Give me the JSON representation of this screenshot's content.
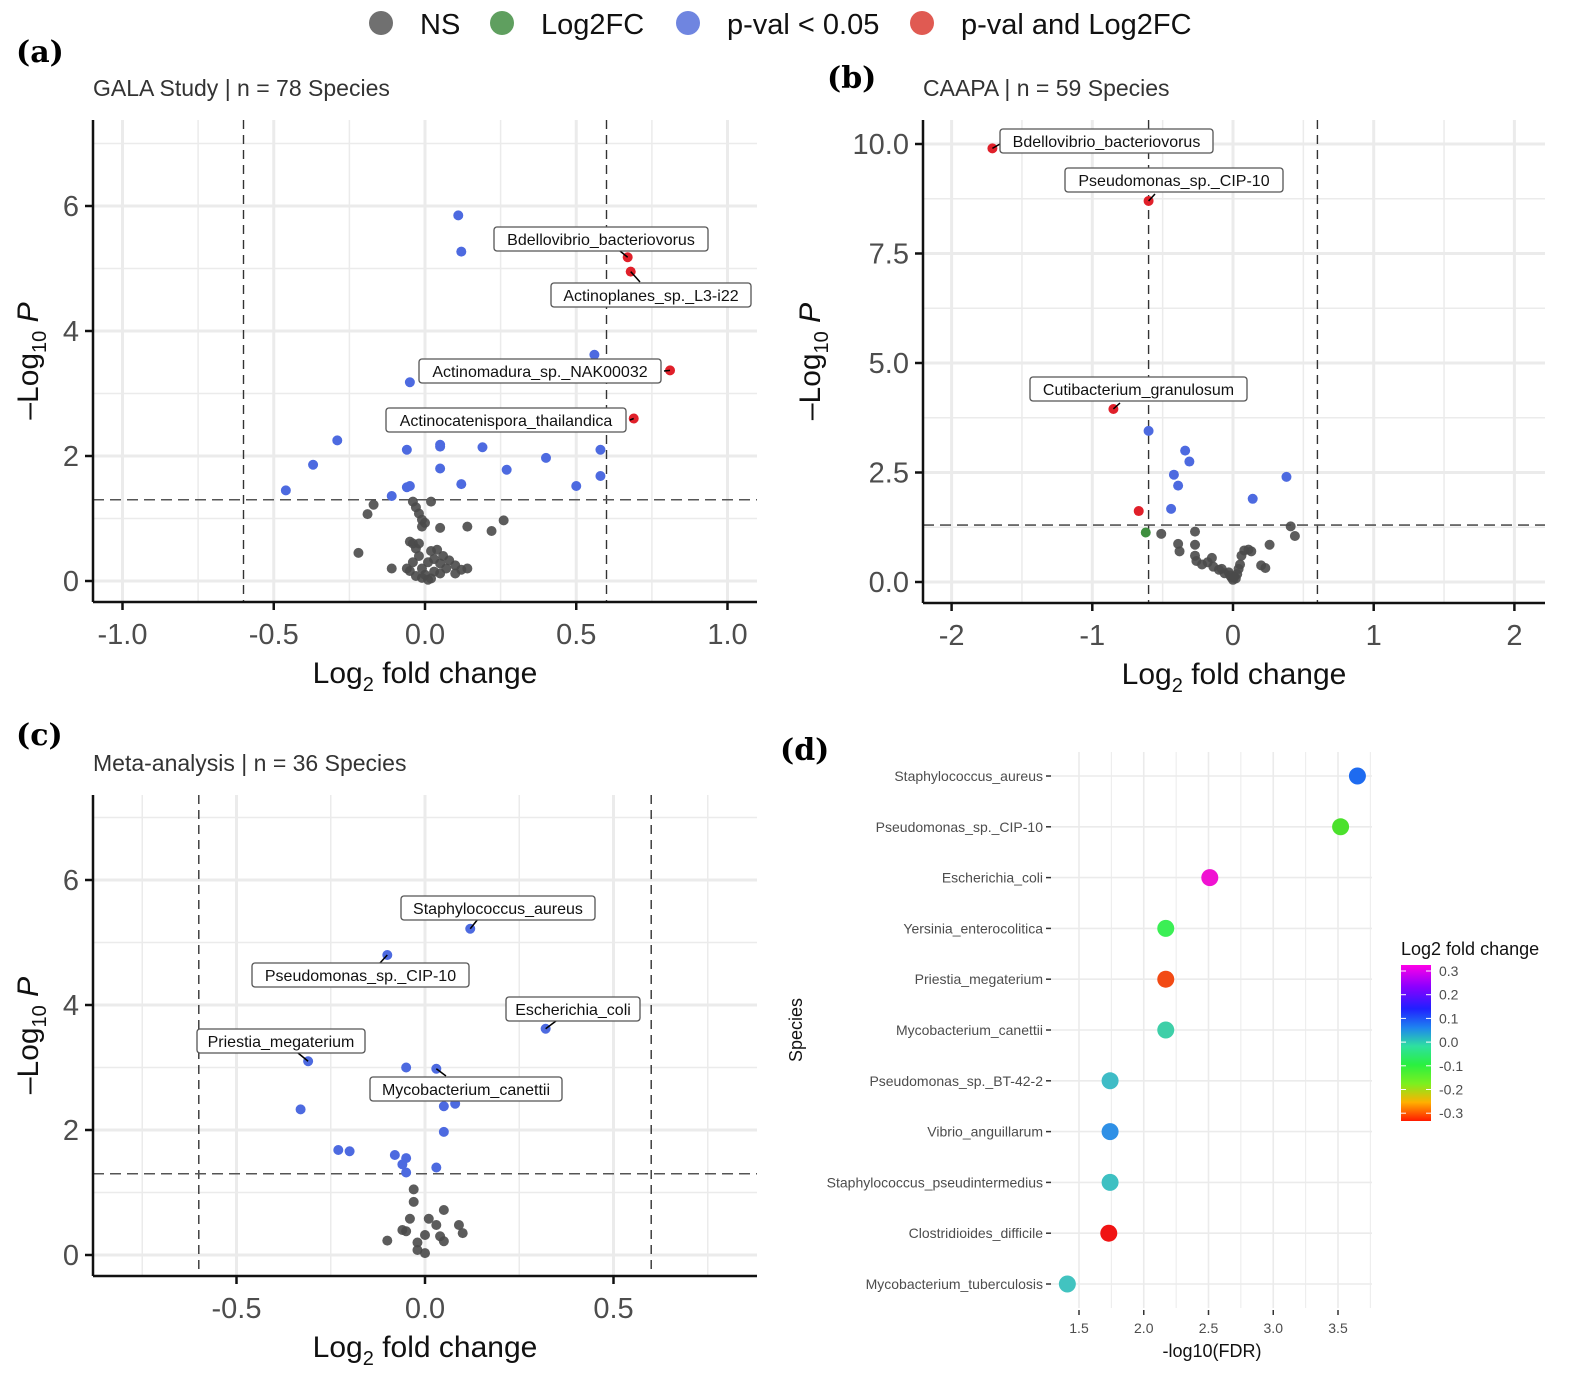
{
  "legend": {
    "items": [
      {
        "label": "NS",
        "color": "#707070"
      },
      {
        "label": "Log2FC",
        "color": "#5f9f5f"
      },
      {
        "label": "p-val < 0.05",
        "color": "#6f85e0"
      },
      {
        "label": "p-val and Log2FC",
        "color": "#e05a52"
      }
    ]
  },
  "chart_data": [
    {
      "panel": "(a)",
      "type": "scatter",
      "title": "GALA Study | n = 78 Species",
      "xlabel": "Log2 fold change",
      "ylabel": "-Log10 P",
      "xlim": [
        -1.1,
        1.1
      ],
      "ylim": [
        -0.3,
        7.4
      ],
      "xticks": [
        "-1.0",
        "-0.5",
        "0.0",
        "0.5",
        "1.0"
      ],
      "xtick_values": [
        -1.0,
        -0.5,
        0.0,
        0.5,
        1.0
      ],
      "yticks": [
        "0",
        "2",
        "4",
        "6"
      ],
      "ytick_values": [
        0,
        2,
        4,
        6
      ],
      "thresholds": {
        "x": [
          -0.6,
          0.6
        ],
        "y": 1.3
      },
      "grid": true,
      "points": [
        {
          "x": 0.11,
          "y": 5.85,
          "cat": "p"
        },
        {
          "x": 0.12,
          "y": 5.27,
          "cat": "p"
        },
        {
          "x": 0.67,
          "y": 5.18,
          "cat": "both",
          "label": "Bdellovibrio_bacteriovorus"
        },
        {
          "x": 0.68,
          "y": 4.95,
          "cat": "both",
          "label": "Actinoplanes_sp._L3-i22"
        },
        {
          "x": 0.56,
          "y": 3.62,
          "cat": "p"
        },
        {
          "x": 0.81,
          "y": 3.37,
          "cat": "both",
          "label": "Actinomadura_sp._NAK00032"
        },
        {
          "x": -0.05,
          "y": 3.18,
          "cat": "p"
        },
        {
          "x": 0.69,
          "y": 2.6,
          "cat": "both",
          "label": "Actinocatenispora_thailandica"
        },
        {
          "x": -0.29,
          "y": 2.25,
          "cat": "p"
        },
        {
          "x": -0.06,
          "y": 2.1,
          "cat": "p"
        },
        {
          "x": 0.05,
          "y": 2.15,
          "cat": "p"
        },
        {
          "x": 0.05,
          "y": 2.18,
          "cat": "p"
        },
        {
          "x": 0.19,
          "y": 2.14,
          "cat": "p"
        },
        {
          "x": 0.58,
          "y": 2.1,
          "cat": "p"
        },
        {
          "x": 0.4,
          "y": 1.97,
          "cat": "p"
        },
        {
          "x": -0.37,
          "y": 1.86,
          "cat": "p"
        },
        {
          "x": 0.05,
          "y": 1.8,
          "cat": "p"
        },
        {
          "x": 0.27,
          "y": 1.78,
          "cat": "p"
        },
        {
          "x": 0.58,
          "y": 1.68,
          "cat": "p"
        },
        {
          "x": 0.12,
          "y": 1.55,
          "cat": "p"
        },
        {
          "x": 0.5,
          "y": 1.52,
          "cat": "p"
        },
        {
          "x": -0.46,
          "y": 1.45,
          "cat": "p"
        },
        {
          "x": -0.06,
          "y": 1.5,
          "cat": "p"
        },
        {
          "x": -0.05,
          "y": 1.52,
          "cat": "p"
        },
        {
          "x": -0.11,
          "y": 1.36,
          "cat": "p"
        },
        {
          "x": -0.17,
          "y": 1.22,
          "cat": "ns"
        },
        {
          "x": -0.19,
          "y": 1.07,
          "cat": "ns"
        },
        {
          "x": -0.04,
          "y": 1.27,
          "cat": "ns"
        },
        {
          "x": -0.03,
          "y": 1.18,
          "cat": "ns"
        },
        {
          "x": -0.02,
          "y": 1.08,
          "cat": "ns"
        },
        {
          "x": -0.01,
          "y": 0.98,
          "cat": "ns"
        },
        {
          "x": 0.02,
          "y": 1.27,
          "cat": "ns"
        },
        {
          "x": 0.0,
          "y": 0.93,
          "cat": "ns"
        },
        {
          "x": -0.01,
          "y": 0.87,
          "cat": "ns"
        },
        {
          "x": 0.05,
          "y": 0.85,
          "cat": "ns"
        },
        {
          "x": 0.14,
          "y": 0.87,
          "cat": "ns"
        },
        {
          "x": 0.26,
          "y": 0.97,
          "cat": "ns"
        },
        {
          "x": 0.22,
          "y": 0.8,
          "cat": "ns"
        },
        {
          "x": -0.22,
          "y": 0.45,
          "cat": "ns"
        },
        {
          "x": -0.11,
          "y": 0.2,
          "cat": "ns"
        },
        {
          "x": -0.06,
          "y": 0.2,
          "cat": "ns"
        },
        {
          "x": -0.05,
          "y": 0.63,
          "cat": "ns"
        },
        {
          "x": -0.04,
          "y": 0.6,
          "cat": "ns"
        },
        {
          "x": -0.03,
          "y": 0.52,
          "cat": "ns"
        },
        {
          "x": -0.02,
          "y": 0.4,
          "cat": "ns"
        },
        {
          "x": -0.04,
          "y": 0.3,
          "cat": "ns"
        },
        {
          "x": -0.05,
          "y": 0.16,
          "cat": "ns"
        },
        {
          "x": -0.03,
          "y": 0.08,
          "cat": "ns"
        },
        {
          "x": -0.01,
          "y": 0.05,
          "cat": "ns"
        },
        {
          "x": 0.01,
          "y": 0.02,
          "cat": "ns"
        },
        {
          "x": 0.0,
          "y": 0.1,
          "cat": "ns"
        },
        {
          "x": -0.01,
          "y": 0.2,
          "cat": "ns"
        },
        {
          "x": 0.01,
          "y": 0.3,
          "cat": "ns"
        },
        {
          "x": 0.02,
          "y": 0.48,
          "cat": "ns"
        },
        {
          "x": 0.03,
          "y": 0.35,
          "cat": "ns"
        },
        {
          "x": 0.04,
          "y": 0.5,
          "cat": "ns"
        },
        {
          "x": 0.05,
          "y": 0.28,
          "cat": "ns"
        },
        {
          "x": 0.06,
          "y": 0.4,
          "cat": "ns"
        },
        {
          "x": 0.07,
          "y": 0.2,
          "cat": "ns"
        },
        {
          "x": 0.08,
          "y": 0.33,
          "cat": "ns"
        },
        {
          "x": 0.1,
          "y": 0.25,
          "cat": "ns"
        },
        {
          "x": 0.12,
          "y": 0.18,
          "cat": "ns"
        },
        {
          "x": 0.14,
          "y": 0.2,
          "cat": "ns"
        },
        {
          "x": 0.03,
          "y": 0.15,
          "cat": "ns"
        },
        {
          "x": 0.02,
          "y": 0.04,
          "cat": "ns"
        },
        {
          "x": 0.05,
          "y": 0.12,
          "cat": "ns"
        },
        {
          "x": -0.02,
          "y": 0.6,
          "cat": "ns"
        },
        {
          "x": 0.1,
          "y": 0.12,
          "cat": "ns"
        }
      ]
    },
    {
      "panel": "(b)",
      "type": "scatter",
      "title": "CAAPA | n = 59 Species",
      "xlabel": "Log2 fold change",
      "ylabel": "-Log10 P",
      "xlim": [
        -2.2,
        2.2
      ],
      "ylim": [
        -0.5,
        10.5
      ],
      "xticks": [
        "-2",
        "-1",
        "0",
        "1",
        "2"
      ],
      "xtick_values": [
        -2,
        -1,
        0,
        1,
        2
      ],
      "yticks": [
        "0.0",
        "2.5",
        "5.0",
        "7.5",
        "10.0"
      ],
      "ytick_values": [
        0,
        2.5,
        5,
        7.5,
        10
      ],
      "thresholds": {
        "x": [
          -0.6,
          0.6
        ],
        "y": 1.3
      },
      "grid": true,
      "points": [
        {
          "x": -1.71,
          "y": 9.9,
          "cat": "both",
          "label": "Bdellovibrio_bacteriovorus"
        },
        {
          "x": -0.6,
          "y": 8.7,
          "cat": "both",
          "label": "Pseudomonas_sp._CIP-10"
        },
        {
          "x": -0.85,
          "y": 3.95,
          "cat": "both",
          "label": "Cutibacterium_granulosum"
        },
        {
          "x": -0.6,
          "y": 3.45,
          "cat": "p"
        },
        {
          "x": -0.34,
          "y": 3.0,
          "cat": "p"
        },
        {
          "x": -0.31,
          "y": 2.75,
          "cat": "p"
        },
        {
          "x": -0.42,
          "y": 2.45,
          "cat": "p"
        },
        {
          "x": -0.39,
          "y": 2.2,
          "cat": "p"
        },
        {
          "x": 0.38,
          "y": 2.4,
          "cat": "p"
        },
        {
          "x": 0.14,
          "y": 1.9,
          "cat": "p"
        },
        {
          "x": -0.44,
          "y": 1.67,
          "cat": "p"
        },
        {
          "x": -0.67,
          "y": 1.62,
          "cat": "both"
        },
        {
          "x": -0.62,
          "y": 1.13,
          "cat": "fc"
        },
        {
          "x": -0.51,
          "y": 1.1,
          "cat": "ns"
        },
        {
          "x": -0.27,
          "y": 1.15,
          "cat": "ns"
        },
        {
          "x": -0.39,
          "y": 0.87,
          "cat": "ns"
        },
        {
          "x": -0.38,
          "y": 0.7,
          "cat": "ns"
        },
        {
          "x": -0.27,
          "y": 0.85,
          "cat": "ns"
        },
        {
          "x": -0.27,
          "y": 0.6,
          "cat": "ns"
        },
        {
          "x": -0.26,
          "y": 0.48,
          "cat": "ns"
        },
        {
          "x": -0.22,
          "y": 0.4,
          "cat": "ns"
        },
        {
          "x": -0.18,
          "y": 0.45,
          "cat": "ns"
        },
        {
          "x": -0.15,
          "y": 0.55,
          "cat": "ns"
        },
        {
          "x": -0.14,
          "y": 0.35,
          "cat": "ns"
        },
        {
          "x": -0.1,
          "y": 0.28,
          "cat": "ns"
        },
        {
          "x": -0.06,
          "y": 0.2,
          "cat": "ns"
        },
        {
          "x": -0.03,
          "y": 0.22,
          "cat": "ns"
        },
        {
          "x": -0.01,
          "y": 0.1,
          "cat": "ns"
        },
        {
          "x": 0.0,
          "y": 0.05,
          "cat": "ns"
        },
        {
          "x": 0.01,
          "y": 0.12,
          "cat": "ns"
        },
        {
          "x": 0.03,
          "y": 0.18,
          "cat": "ns"
        },
        {
          "x": 0.04,
          "y": 0.3,
          "cat": "ns"
        },
        {
          "x": 0.05,
          "y": 0.4,
          "cat": "ns"
        },
        {
          "x": 0.06,
          "y": 0.6,
          "cat": "ns"
        },
        {
          "x": 0.08,
          "y": 0.72,
          "cat": "ns"
        },
        {
          "x": 0.11,
          "y": 0.74,
          "cat": "ns"
        },
        {
          "x": 0.13,
          "y": 0.7,
          "cat": "ns"
        },
        {
          "x": 0.2,
          "y": 0.38,
          "cat": "ns"
        },
        {
          "x": 0.23,
          "y": 0.32,
          "cat": "ns"
        },
        {
          "x": 0.26,
          "y": 0.85,
          "cat": "ns"
        },
        {
          "x": 0.41,
          "y": 1.27,
          "cat": "ns"
        },
        {
          "x": 0.44,
          "y": 1.05,
          "cat": "ns"
        },
        {
          "x": -0.02,
          "y": 0.15,
          "cat": "ns"
        },
        {
          "x": 0.02,
          "y": 0.08,
          "cat": "ns"
        },
        {
          "x": -0.08,
          "y": 0.3,
          "cat": "ns"
        }
      ]
    },
    {
      "panel": "(c)",
      "type": "scatter",
      "title": "Meta-analysis | n = 36 Species",
      "xlabel": "Log2 fold change",
      "ylabel": "-Log10 P",
      "xlim": [
        -0.88,
        0.88
      ],
      "ylim": [
        -0.3,
        7.4
      ],
      "xticks": [
        "-0.5",
        "0.0",
        "0.5"
      ],
      "xtick_values": [
        -0.5,
        0.0,
        0.5
      ],
      "yticks": [
        "0",
        "2",
        "4",
        "6"
      ],
      "ytick_values": [
        0,
        2,
        4,
        6
      ],
      "thresholds": {
        "x": [
          -0.6,
          0.6
        ],
        "y": 1.3
      },
      "grid": true,
      "points": [
        {
          "x": 0.12,
          "y": 5.22,
          "cat": "p",
          "label": "Staphylococcus_aureus"
        },
        {
          "x": -0.1,
          "y": 4.8,
          "cat": "p",
          "label": "Pseudomonas_sp._CIP-10"
        },
        {
          "x": 0.32,
          "y": 3.62,
          "cat": "p",
          "label": "Escherichia_coli"
        },
        {
          "x": -0.31,
          "y": 3.1,
          "cat": "p",
          "label": "Priestia_megaterium"
        },
        {
          "x": -0.05,
          "y": 3.0,
          "cat": "p"
        },
        {
          "x": 0.03,
          "y": 2.98,
          "cat": "p",
          "label": "Mycobacterium_canettii"
        },
        {
          "x": 0.05,
          "y": 2.38,
          "cat": "p"
        },
        {
          "x": 0.08,
          "y": 2.42,
          "cat": "p"
        },
        {
          "x": -0.33,
          "y": 2.33,
          "cat": "p"
        },
        {
          "x": 0.05,
          "y": 1.97,
          "cat": "p"
        },
        {
          "x": -0.23,
          "y": 1.68,
          "cat": "p"
        },
        {
          "x": -0.2,
          "y": 1.66,
          "cat": "p"
        },
        {
          "x": -0.08,
          "y": 1.6,
          "cat": "p"
        },
        {
          "x": -0.05,
          "y": 1.55,
          "cat": "p"
        },
        {
          "x": -0.06,
          "y": 1.45,
          "cat": "p"
        },
        {
          "x": 0.03,
          "y": 1.4,
          "cat": "p"
        },
        {
          "x": -0.05,
          "y": 1.32,
          "cat": "p"
        },
        {
          "x": -0.03,
          "y": 1.05,
          "cat": "ns"
        },
        {
          "x": -0.03,
          "y": 0.85,
          "cat": "ns"
        },
        {
          "x": 0.05,
          "y": 0.72,
          "cat": "ns"
        },
        {
          "x": -0.04,
          "y": 0.58,
          "cat": "ns"
        },
        {
          "x": 0.01,
          "y": 0.58,
          "cat": "ns"
        },
        {
          "x": 0.03,
          "y": 0.48,
          "cat": "ns"
        },
        {
          "x": 0.09,
          "y": 0.48,
          "cat": "ns"
        },
        {
          "x": 0.1,
          "y": 0.35,
          "cat": "ns"
        },
        {
          "x": -0.06,
          "y": 0.4,
          "cat": "ns"
        },
        {
          "x": -0.05,
          "y": 0.38,
          "cat": "ns"
        },
        {
          "x": 0.0,
          "y": 0.32,
          "cat": "ns"
        },
        {
          "x": 0.04,
          "y": 0.3,
          "cat": "ns"
        },
        {
          "x": 0.05,
          "y": 0.22,
          "cat": "ns"
        },
        {
          "x": -0.1,
          "y": 0.23,
          "cat": "ns"
        },
        {
          "x": -0.02,
          "y": 0.2,
          "cat": "ns"
        },
        {
          "x": -0.02,
          "y": 0.08,
          "cat": "ns"
        },
        {
          "x": 0.0,
          "y": 0.03,
          "cat": "ns"
        }
      ]
    },
    {
      "panel": "(d)",
      "type": "scatter",
      "title": "",
      "xlabel": "-log10(FDR)",
      "ylabel": "Species",
      "xlim": [
        1.35,
        3.75
      ],
      "xticks": [
        "1.5",
        "2.0",
        "2.5",
        "3.0",
        "3.5"
      ],
      "xtick_values": [
        1.5,
        2.0,
        2.5,
        3.0,
        3.5
      ],
      "colorbar": {
        "title": "Log2 fold change",
        "ticks": [
          "0.3",
          "0.2",
          "0.1",
          "0.0",
          "-0.1",
          "-0.2",
          "-0.3"
        ],
        "range": [
          -0.32,
          0.32
        ]
      },
      "grid": true,
      "categories": [
        "Staphylococcus_aureus",
        "Pseudomonas_sp._CIP-10",
        "Escherichia_coli",
        "Yersinia_enterocolitica",
        "Priestia_megaterium",
        "Mycobacterium_canettii",
        "Pseudomonas_sp._BT-42-2",
        "Vibrio_anguillarum",
        "Staphylococcus_pseudintermedius",
        "Clostridioides_difficile",
        "Mycobacterium_tuberculosis"
      ],
      "x": [
        3.65,
        3.52,
        2.51,
        2.17,
        2.17,
        2.17,
        1.74,
        1.74,
        1.74,
        1.73,
        1.41
      ],
      "log2fc": [
        0.12,
        -0.1,
        0.32,
        -0.06,
        -0.31,
        0.03,
        0.05,
        0.1,
        0.04,
        -0.32,
        0.05
      ],
      "colors": [
        "#1e6bf0",
        "#4be12c",
        "#f012d2",
        "#3bef55",
        "#f24a14",
        "#3ecfa8",
        "#3fbcc6",
        "#2f90e6",
        "#3ec0c2",
        "#f01414",
        "#42c3c0"
      ]
    }
  ]
}
